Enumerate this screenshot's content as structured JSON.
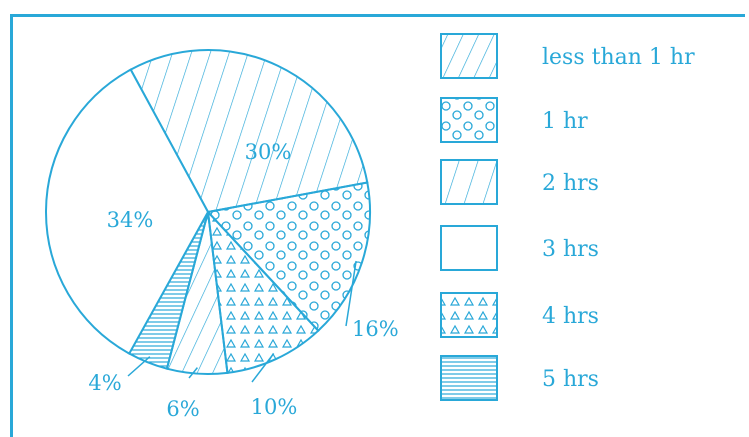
{
  "chart_data": {
    "type": "pie",
    "title": "",
    "categories": [
      "less than 1 hr",
      "1 hr",
      "2 hrs",
      "3 hrs",
      "4 hrs",
      "5 hrs"
    ],
    "values": [
      6,
      16,
      30,
      34,
      10,
      4
    ],
    "value_labels": [
      "6%",
      "16%",
      "30%",
      "34%",
      "10%",
      "4%"
    ],
    "legend_position": "right",
    "colors": {
      "stroke": "#29a8d8",
      "background": "#ffffff"
    },
    "patterns": [
      "diagonal-cross-lines",
      "circles",
      "forward-diagonal-lines",
      "none",
      "triangles",
      "horizontal-lines"
    ]
  }
}
